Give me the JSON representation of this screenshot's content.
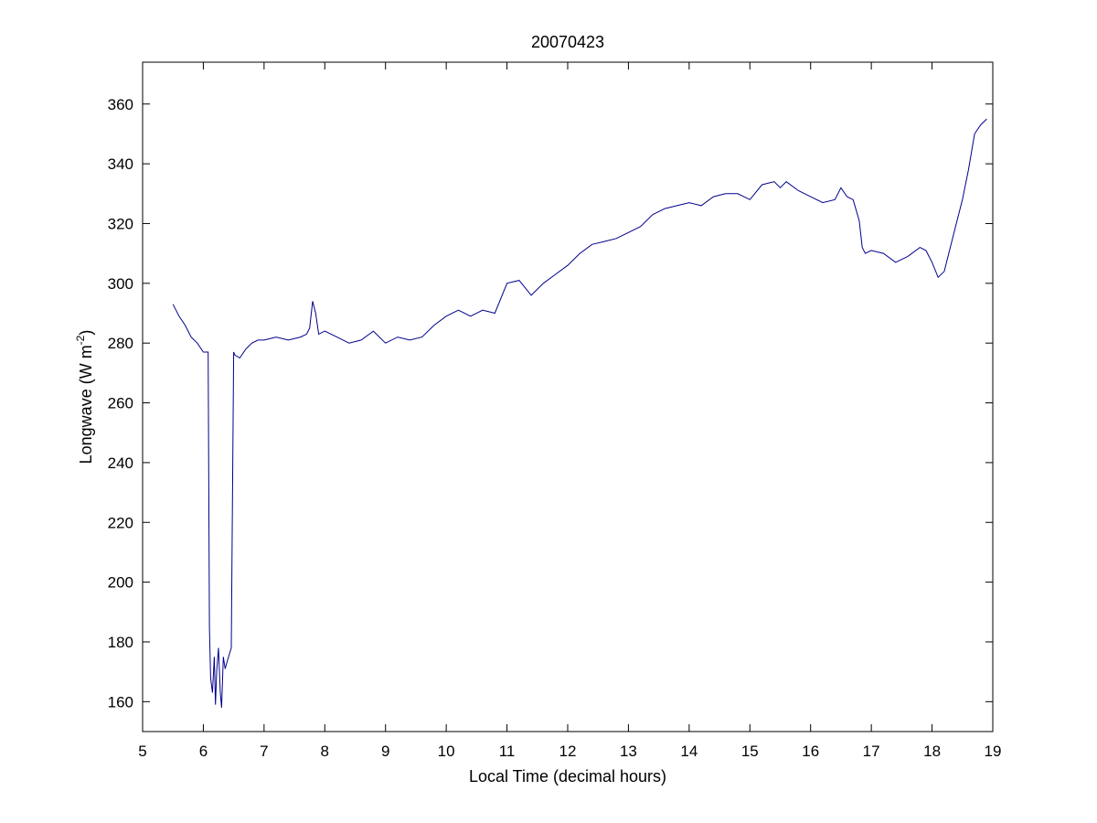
{
  "chart_data": {
    "type": "line",
    "title": "20070423",
    "xlabel": "Local Time (decimal hours)",
    "ylabel": {
      "prefix": "Longwave (W m",
      "superscript": "-2",
      "suffix": ")"
    },
    "xlim": [
      5,
      19
    ],
    "ylim": [
      150,
      374
    ],
    "xticks": [
      5,
      6,
      7,
      8,
      9,
      10,
      11,
      12,
      13,
      14,
      15,
      16,
      17,
      18,
      19
    ],
    "yticks": [
      160,
      180,
      200,
      220,
      240,
      260,
      280,
      300,
      320,
      340,
      360
    ],
    "grid": false,
    "line_color": "#00008b",
    "series": [
      {
        "x": [
          5.5,
          5.6,
          5.7,
          5.8,
          5.9,
          6.0,
          6.05,
          6.08,
          6.1,
          6.12,
          6.15,
          6.18,
          6.2,
          6.22,
          6.25,
          6.28,
          6.3,
          6.33,
          6.36,
          6.4,
          6.43,
          6.46,
          6.5,
          6.52,
          6.6,
          6.7,
          6.8,
          6.9,
          7.0,
          7.2,
          7.4,
          7.6,
          7.7,
          7.75,
          7.8,
          7.85,
          7.9,
          8.0,
          8.2,
          8.4,
          8.6,
          8.8,
          9.0,
          9.2,
          9.4,
          9.6,
          9.8,
          10.0,
          10.2,
          10.4,
          10.6,
          10.8,
          11.0,
          11.2,
          11.4,
          11.6,
          11.8,
          12.0,
          12.2,
          12.4,
          12.6,
          12.8,
          13.0,
          13.2,
          13.4,
          13.6,
          13.8,
          14.0,
          14.2,
          14.4,
          14.6,
          14.8,
          15.0,
          15.2,
          15.4,
          15.5,
          15.6,
          15.8,
          16.0,
          16.2,
          16.4,
          16.5,
          16.6,
          16.7,
          16.8,
          16.85,
          16.9,
          17.0,
          17.2,
          17.4,
          17.6,
          17.8,
          17.9,
          18.0,
          18.1,
          18.2,
          18.3,
          18.4,
          18.5,
          18.6,
          18.7,
          18.8,
          18.9
        ],
        "y": [
          293,
          289,
          286,
          282,
          280,
          277,
          277,
          277,
          185,
          168,
          163,
          175,
          159,
          170,
          178,
          163,
          158,
          175,
          171,
          174,
          176,
          178,
          277,
          276,
          275,
          278,
          280,
          281,
          281,
          282,
          281,
          282,
          283,
          285,
          294,
          290,
          283,
          284,
          282,
          280,
          281,
          284,
          280,
          282,
          281,
          282,
          286,
          289,
          291,
          289,
          291,
          290,
          300,
          301,
          296,
          300,
          303,
          306,
          310,
          313,
          314,
          315,
          317,
          319,
          323,
          325,
          326,
          327,
          326,
          329,
          330,
          330,
          328,
          333,
          334,
          332,
          334,
          331,
          329,
          327,
          328,
          332,
          329,
          328,
          321,
          312,
          310,
          311,
          310,
          307,
          309,
          312,
          311,
          307,
          302,
          304,
          312,
          320,
          328,
          338,
          350,
          353,
          355
        ]
      }
    ]
  }
}
